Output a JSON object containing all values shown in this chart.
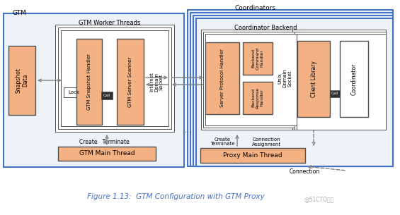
{
  "title": "Figure 1.13:  GTM Configuration with GTM Proxy",
  "title_color": "#4472C4",
  "watermark": "@51CTO博客",
  "bg_color": "#ffffff",
  "gtm_label": "GTM",
  "coordinators_label": "Coordinators",
  "gtm_worker_label": "GTM Worker Threads",
  "coordinator_backend_label": "Coordinator Backend",
  "snapshot_data_label": "Snapshot\nData",
  "lock_label": "Lock",
  "call_label1": "Call",
  "gtm_snapshot_handler_label": "GTM Snapshot Handler",
  "gtm_server_scanner_label": "GTM Server Scanner",
  "internet_domain_socket_label": "Internet\nDomain\nSocket",
  "gtm_main_thread_label": "GTM Main Thread",
  "create_terminate_label1": "Create   Terminate",
  "server_protocol_handler_label": "Server Protocol Handler",
  "backend_command_handler_label": "Backend\nCommand\nHandler",
  "backend_response_handler_label": "Backend\nResponse\nHandler",
  "unix_domain_socket_label": "Unix\nDomain\nSocket",
  "client_library_label": "Client Library",
  "call_label2": "Call",
  "coordinator_label": "Coordinator",
  "proxy_main_thread_label": "Proxy Main Thread",
  "create_terminate_label2": "Create\nTerminate",
  "connection_assignment_label": "Connection\nAssignment",
  "connection_label": "Connection",
  "dotdot_label": ". .",
  "orange_fill": "#F4B183",
  "box_edge": "#505050",
  "blue_edge": "#4472C4",
  "arrow_color": "#808080",
  "dashed_arrow_color": "#909090",
  "light_blue_fill": "#EEF3FA"
}
